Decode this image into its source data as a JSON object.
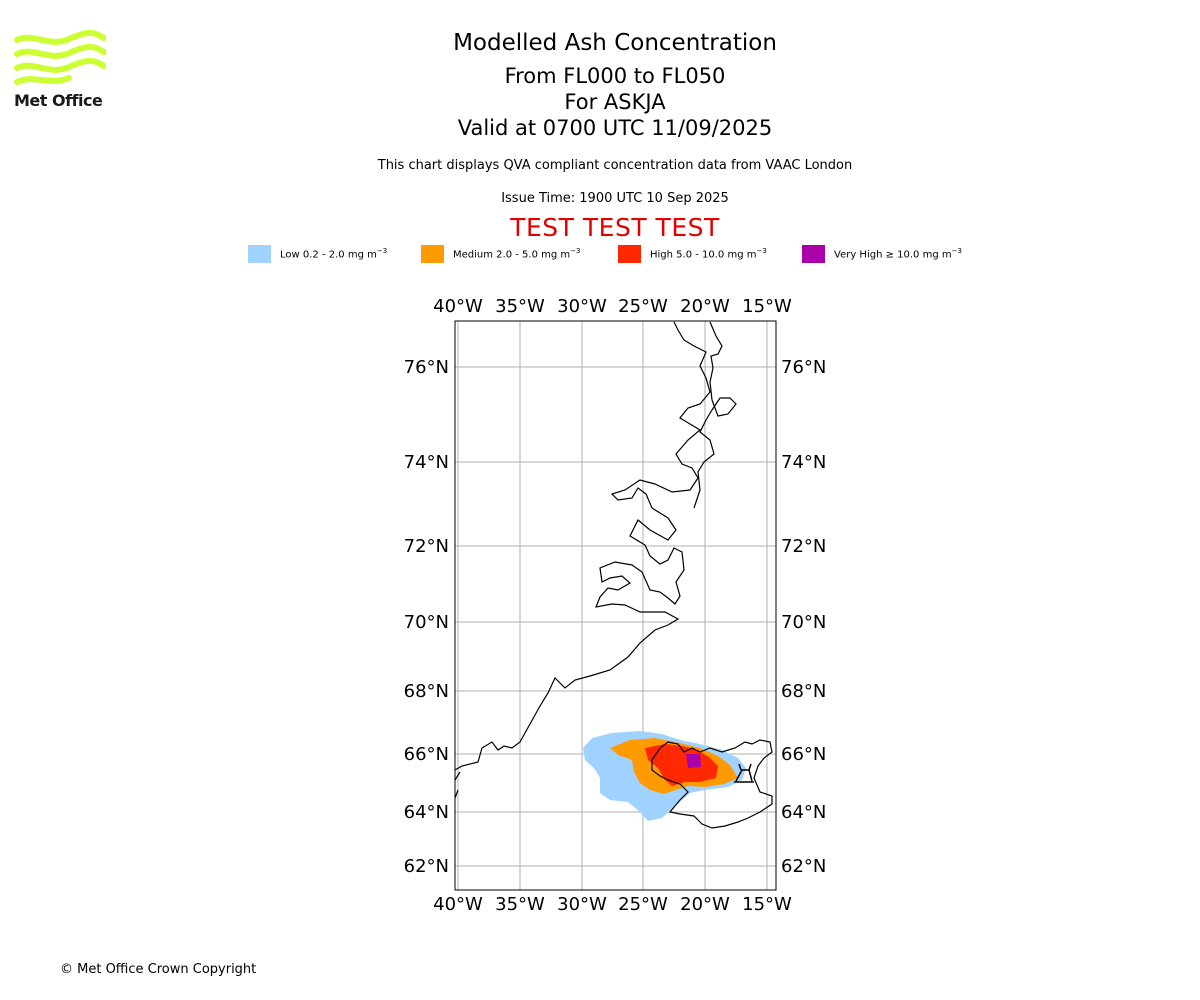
{
  "logo": {
    "name": "Met Office"
  },
  "header": {
    "title": "Modelled Ash Concentration",
    "subtitle_levels": "From FL000 to FL050",
    "subtitle_volcano": "For ASKJA",
    "subtitle_valid": "Valid at 0700 UTC 11/09/2025",
    "disclaimer": "This chart displays QVA compliant concentration data from VAAC London",
    "issue_time": "Issue Time: 1900 UTC 10 Sep 2025",
    "test_banner": "TEST TEST TEST"
  },
  "legend": [
    {
      "label": "Low 0.2 - 2.0 mg m",
      "unit_exp": "−3",
      "color": "#a0d2ff"
    },
    {
      "label": "Medium 2.0 - 5.0 mg m",
      "unit_exp": "−3",
      "color": "#ff9a00"
    },
    {
      "label": "High 5.0 - 10.0 mg m",
      "unit_exp": "−3",
      "color": "#ff2800"
    },
    {
      "label": "Very High  ≥  10.0 mg m",
      "unit_exp": "−3",
      "color": "#aa00aa"
    }
  ],
  "map": {
    "lon_ticks": [
      "40°W",
      "35°W",
      "30°W",
      "25°W",
      "20°W",
      "15°W"
    ],
    "lat_ticks": [
      "76°N",
      "74°N",
      "72°N",
      "70°N",
      "68°N",
      "66°N",
      "64°N",
      "62°N"
    ],
    "grid": true,
    "volcano_symbol": "volcano-icon"
  },
  "footer": {
    "copyright": "© Met Office Crown Copyright"
  }
}
